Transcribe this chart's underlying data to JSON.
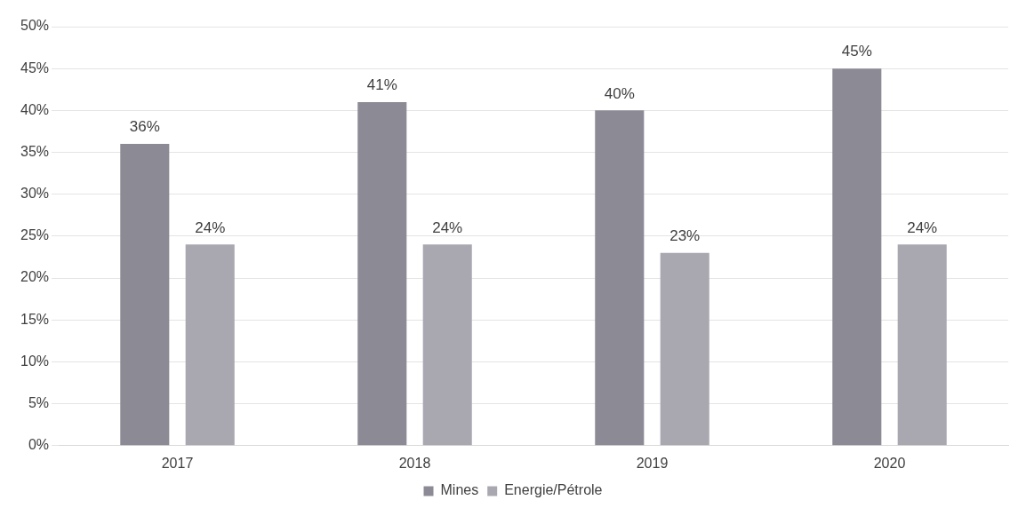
{
  "chart_data": {
    "type": "bar",
    "categories": [
      "2017",
      "2018",
      "2019",
      "2020"
    ],
    "series": [
      {
        "name": "Mines",
        "color": "#8c8b95",
        "values": [
          36,
          41,
          40,
          45
        ],
        "value_labels": [
          "36%",
          "41%",
          "40%",
          "45%"
        ]
      },
      {
        "name": "Energie/Pétrole",
        "color": "#a9a8b1",
        "values": [
          24,
          24,
          23,
          24
        ],
        "value_labels": [
          "24%",
          "24%",
          "23%",
          "24%"
        ]
      }
    ],
    "ylim": [
      0,
      50
    ],
    "yticks": [
      {
        "value": 0,
        "label": "0%"
      },
      {
        "value": 5,
        "label": "5%"
      },
      {
        "value": 10,
        "label": "10%"
      },
      {
        "value": 15,
        "label": "15%"
      },
      {
        "value": 20,
        "label": "20%"
      },
      {
        "value": 25,
        "label": "25%"
      },
      {
        "value": 30,
        "label": "30%"
      },
      {
        "value": 35,
        "label": "35%"
      },
      {
        "value": 40,
        "label": "40%"
      },
      {
        "value": 45,
        "label": "45%"
      },
      {
        "value": 50,
        "label": "50%"
      }
    ],
    "grid": "y",
    "legend": "bottom"
  }
}
